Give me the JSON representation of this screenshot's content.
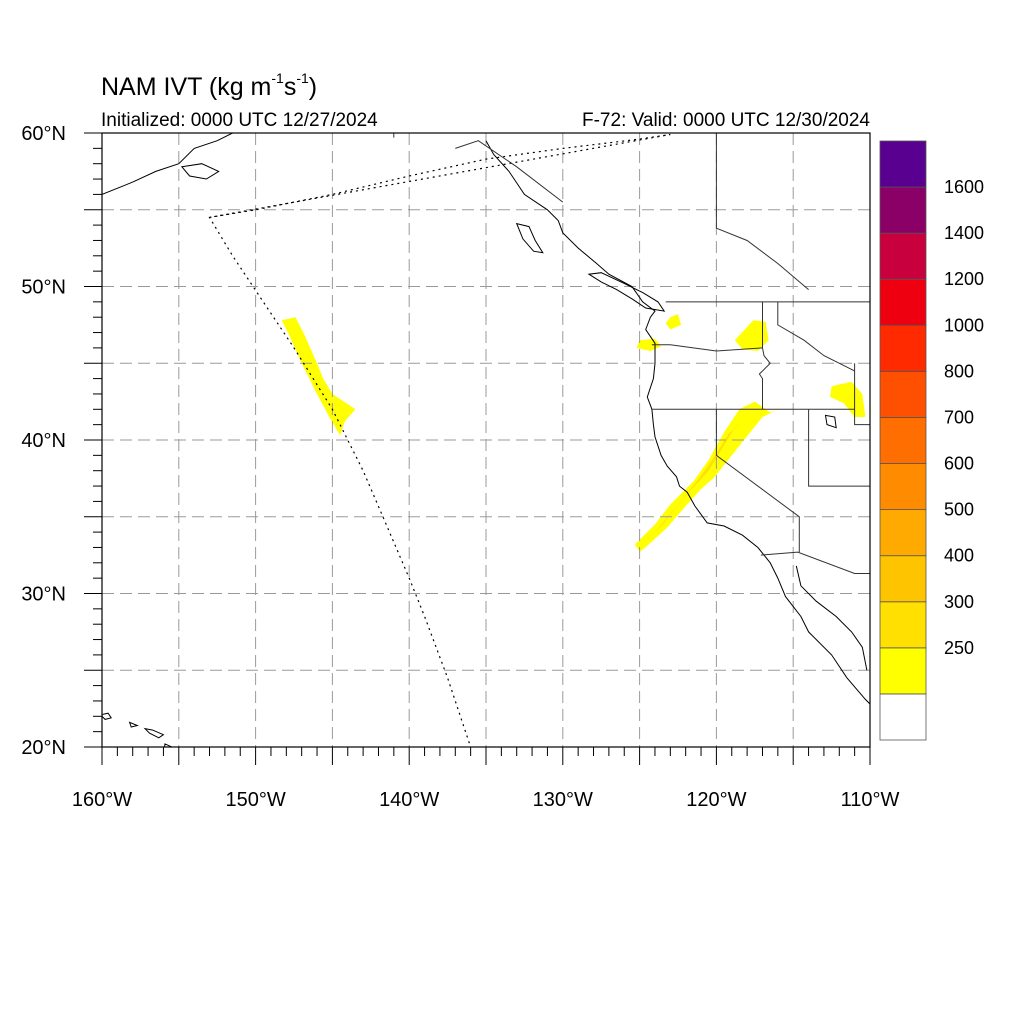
{
  "header": {
    "title_main": "NAM IVT (kg m",
    "title_exp1": "-1",
    "title_mid": "s",
    "title_exp2": "-1",
    "title_end": ")",
    "initialized": "Initialized: 0000 UTC 12/27/2024",
    "valid": "F-72: Valid: 0000 UTC 12/30/2024"
  },
  "map": {
    "lon_range": [
      -160,
      -110
    ],
    "lat_range": [
      20,
      60
    ],
    "lat_labels": [
      {
        "lat": 60,
        "text": "60°N"
      },
      {
        "lat": 50,
        "text": "50°N"
      },
      {
        "lat": 40,
        "text": "40°N"
      },
      {
        "lat": 30,
        "text": "30°N"
      },
      {
        "lat": 20,
        "text": "20°N"
      }
    ],
    "lon_labels": [
      {
        "lon": -160,
        "text": "160°W"
      },
      {
        "lon": -150,
        "text": "150°W"
      },
      {
        "lon": -140,
        "text": "140°W"
      },
      {
        "lon": -130,
        "text": "130°W"
      },
      {
        "lon": -120,
        "text": "120°W"
      },
      {
        "lon": -110,
        "text": "110°W"
      }
    ],
    "domain_boundary": [
      [
        -153.0,
        54.5
      ],
      [
        -150.0,
        55.0
      ],
      [
        -145.0,
        56.0
      ],
      [
        -140.0,
        57.2
      ],
      [
        -135.0,
        58.3
      ],
      [
        -130.0,
        59.0
      ],
      [
        -125.0,
        59.6
      ],
      [
        -123.0,
        59.9
      ],
      [
        -153.0,
        54.5
      ],
      [
        -151.5,
        52.0
      ],
      [
        -149.5,
        49.0
      ],
      [
        -147.5,
        46.0
      ],
      [
        -145.0,
        42.0
      ],
      [
        -143.0,
        38.0
      ],
      [
        -141.5,
        34.5
      ],
      [
        -140.0,
        31.0
      ],
      [
        -139.0,
        28.5
      ],
      [
        -137.5,
        24.5
      ],
      [
        -136.0,
        20.0
      ]
    ],
    "ivt_regions": [
      {
        "name": "offshore-plume",
        "level": 250,
        "color": "#ffff00",
        "points": [
          [
            -148.3,
            47.8
          ],
          [
            -147.4,
            48.0
          ],
          [
            -146.8,
            46.8
          ],
          [
            -146.0,
            45.0
          ],
          [
            -145.6,
            44.0
          ],
          [
            -145.0,
            43.0
          ],
          [
            -143.5,
            42.0
          ],
          [
            -144.2,
            41.2
          ],
          [
            -144.5,
            40.3
          ],
          [
            -145.2,
            41.5
          ],
          [
            -146.0,
            43.0
          ],
          [
            -147.0,
            45.0
          ],
          [
            -147.8,
            46.8
          ]
        ]
      },
      {
        "name": "california-plume",
        "level": 250,
        "color": "#ffff00",
        "points": [
          [
            -125.3,
            33.2
          ],
          [
            -124.0,
            34.5
          ],
          [
            -123.0,
            35.8
          ],
          [
            -121.5,
            37.3
          ],
          [
            -120.5,
            38.7
          ],
          [
            -119.5,
            40.5
          ],
          [
            -118.5,
            42.0
          ],
          [
            -117.5,
            42.5
          ],
          [
            -116.5,
            41.8
          ],
          [
            -116.0,
            42.0
          ],
          [
            -117.0,
            41.5
          ],
          [
            -117.8,
            40.5
          ],
          [
            -119.0,
            39.0
          ],
          [
            -120.2,
            37.5
          ],
          [
            -121.0,
            36.8
          ],
          [
            -122.0,
            35.7
          ],
          [
            -123.2,
            34.3
          ],
          [
            -124.5,
            33.1
          ],
          [
            -125.0,
            32.7
          ]
        ]
      },
      {
        "name": "california-core",
        "level": 300,
        "color": "#ffe000",
        "points": [
          [
            -124.0,
            34.0
          ],
          [
            -123.0,
            35.2
          ],
          [
            -121.8,
            36.6
          ],
          [
            -120.5,
            38.0
          ],
          [
            -119.6,
            39.5
          ],
          [
            -118.8,
            40.8
          ],
          [
            -118.2,
            41.3
          ],
          [
            -119.2,
            40.4
          ],
          [
            -120.2,
            38.8
          ],
          [
            -121.2,
            37.4
          ],
          [
            -122.4,
            35.9
          ],
          [
            -123.5,
            34.5
          ]
        ]
      },
      {
        "name": "northwest-patch",
        "level": 250,
        "color": "#ffff00",
        "points": [
          [
            -125.0,
            46.5
          ],
          [
            -124.0,
            46.6
          ],
          [
            -123.6,
            46.1
          ],
          [
            -124.3,
            45.8
          ],
          [
            -125.2,
            46.0
          ]
        ]
      },
      {
        "name": "puget-patch",
        "level": 250,
        "color": "#ffff00",
        "points": [
          [
            -123.0,
            48.0
          ],
          [
            -122.5,
            48.2
          ],
          [
            -122.3,
            47.5
          ],
          [
            -123.0,
            47.2
          ],
          [
            -123.3,
            47.6
          ]
        ]
      },
      {
        "name": "idaho-patch",
        "level": 250,
        "color": "#ffff00",
        "points": [
          [
            -118.8,
            46.5
          ],
          [
            -117.6,
            47.8
          ],
          [
            -116.8,
            47.7
          ],
          [
            -116.6,
            46.5
          ],
          [
            -117.3,
            45.8
          ],
          [
            -118.3,
            45.9
          ]
        ]
      },
      {
        "name": "utah-patch",
        "level": 250,
        "color": "#ffff00",
        "points": [
          [
            -112.5,
            43.5
          ],
          [
            -111.2,
            43.8
          ],
          [
            -110.5,
            43.0
          ],
          [
            -110.3,
            41.5
          ],
          [
            -111.0,
            41.5
          ],
          [
            -111.7,
            42.4
          ],
          [
            -112.6,
            42.8
          ]
        ]
      }
    ],
    "coastline": [
      [
        -135.0,
        59.5
      ],
      [
        -134.5,
        58.6
      ],
      [
        -133.5,
        57.5
      ],
      [
        -132.5,
        56.0
      ],
      [
        -131.0,
        55.0
      ],
      [
        -130.3,
        54.3
      ],
      [
        -130.0,
        53.5
      ],
      [
        -129.0,
        52.5
      ],
      [
        -127.8,
        51.5
      ],
      [
        -127.0,
        50.8
      ],
      [
        -125.5,
        50.0
      ],
      [
        -124.8,
        49.0
      ],
      [
        -124.0,
        48.4
      ],
      [
        -124.3,
        48.0
      ],
      [
        -124.6,
        47.2
      ],
      [
        -124.0,
        46.3
      ],
      [
        -124.0,
        45.0
      ],
      [
        -124.1,
        44.0
      ],
      [
        -124.5,
        42.8
      ],
      [
        -124.2,
        42.0
      ],
      [
        -124.1,
        41.0
      ],
      [
        -124.0,
        40.2
      ],
      [
        -123.6,
        39.0
      ],
      [
        -123.2,
        38.3
      ],
      [
        -122.6,
        37.6
      ],
      [
        -122.4,
        37.0
      ],
      [
        -121.9,
        36.6
      ],
      [
        -121.4,
        35.7
      ],
      [
        -120.6,
        34.6
      ],
      [
        -119.5,
        34.4
      ],
      [
        -118.3,
        33.8
      ],
      [
        -117.3,
        33.0
      ],
      [
        -116.5,
        32.0
      ],
      [
        -116.0,
        31.0
      ],
      [
        -115.5,
        29.8
      ],
      [
        -114.5,
        28.5
      ],
      [
        -114.0,
        27.5
      ],
      [
        -112.5,
        26.0
      ],
      [
        -111.5,
        24.5
      ],
      [
        -110.3,
        23.1
      ],
      [
        -110.0,
        22.8
      ]
    ],
    "gulf_coast": [
      [
        -114.8,
        31.8
      ],
      [
        -114.5,
        30.5
      ],
      [
        -113.5,
        29.5
      ],
      [
        -112.2,
        28.5
      ],
      [
        -111.2,
        27.5
      ],
      [
        -110.5,
        26.5
      ],
      [
        -110.2,
        25.0
      ]
    ],
    "vancouver_island": [
      [
        -128.3,
        50.8
      ],
      [
        -127.5,
        50.3
      ],
      [
        -126.5,
        49.8
      ],
      [
        -125.5,
        49.2
      ],
      [
        -124.6,
        48.6
      ],
      [
        -123.4,
        48.4
      ],
      [
        -123.8,
        49.0
      ],
      [
        -124.8,
        49.6
      ],
      [
        -126.0,
        50.2
      ],
      [
        -127.5,
        50.9
      ]
    ],
    "haida_gwaii": [
      [
        -133.0,
        54.1
      ],
      [
        -132.2,
        53.9
      ],
      [
        -131.8,
        53.0
      ],
      [
        -131.3,
        52.2
      ],
      [
        -131.9,
        52.3
      ],
      [
        -132.6,
        53.1
      ]
    ],
    "alaska_west": [
      [
        -160.0,
        56.0
      ],
      [
        -158.0,
        56.8
      ],
      [
        -156.5,
        57.5
      ],
      [
        -155.0,
        58.0
      ],
      [
        -154.0,
        59.0
      ],
      [
        -152.5,
        59.5
      ],
      [
        -151.5,
        60.0
      ]
    ],
    "kodiak": [
      [
        -154.8,
        57.8
      ],
      [
        -153.5,
        58.0
      ],
      [
        -152.4,
        57.5
      ],
      [
        -153.2,
        57.0
      ],
      [
        -154.3,
        57.2
      ]
    ],
    "hawaii": [
      [
        -160.1,
        22.1
      ],
      [
        -159.6,
        22.2
      ],
      [
        -159.4,
        21.9
      ],
      [
        -159.8,
        21.8
      ]
    ],
    "hawaii2": [
      [
        -158.2,
        21.6
      ],
      [
        -157.7,
        21.4
      ],
      [
        -158.1,
        21.3
      ]
    ],
    "hawaii3": [
      [
        -157.2,
        21.2
      ],
      [
        -156.7,
        21.1
      ],
      [
        -156.0,
        20.8
      ],
      [
        -156.3,
        20.6
      ],
      [
        -156.9,
        20.9
      ]
    ],
    "hawaii4": [
      [
        -155.9,
        20.2
      ],
      [
        -155.0,
        19.8
      ],
      [
        -155.5,
        19.2
      ],
      [
        -156.0,
        19.5
      ]
    ],
    "borders": [
      [
        [
          -123.3,
          49.0
        ],
        [
          -110.0,
          49.0
        ]
      ],
      [
        [
          -141.0,
          60.0
        ],
        [
          -141.0,
          59.7
        ]
      ],
      [
        [
          -124.2,
          46.2
        ],
        [
          -123.0,
          46.2
        ],
        [
          -120.0,
          45.8
        ],
        [
          -117.0,
          46.0
        ],
        [
          -116.9,
          45.5
        ],
        [
          -116.5,
          45.0
        ],
        [
          -117.2,
          44.3
        ],
        [
          -117.0,
          44.0
        ],
        [
          -117.0,
          42.0
        ]
      ],
      [
        [
          -124.2,
          42.0
        ],
        [
          -111.0,
          42.0
        ]
      ],
      [
        [
          -120.0,
          42.0
        ],
        [
          -120.0,
          39.0
        ],
        [
          -114.6,
          35.0
        ],
        [
          -114.6,
          32.7
        ]
      ],
      [
        [
          -117.0,
          49.0
        ],
        [
          -117.0,
          46.0
        ]
      ],
      [
        [
          -116.0,
          49.0
        ],
        [
          -116.0,
          47.5
        ],
        [
          -114.3,
          46.5
        ],
        [
          -113.0,
          45.5
        ],
        [
          -111.0,
          44.5
        ]
      ],
      [
        [
          -114.0,
          42.0
        ],
        [
          -114.0,
          37.0
        ],
        [
          -110.0,
          37.0
        ]
      ],
      [
        [
          -111.0,
          45.0
        ],
        [
          -111.0,
          41.0
        ],
        [
          -110.0,
          41.0
        ]
      ],
      [
        [
          -117.1,
          32.5
        ],
        [
          -114.7,
          32.7
        ],
        [
          -111.0,
          31.3
        ],
        [
          -108.2,
          31.3
        ]
      ],
      [
        [
          -120.0,
          60.0
        ],
        [
          -120.0,
          53.8
        ],
        [
          -118.0,
          53.0
        ],
        [
          -116.0,
          51.5
        ],
        [
          -114.0,
          49.8
        ]
      ],
      [
        [
          -130.0,
          55.5
        ],
        [
          -133.0,
          57.8
        ],
        [
          -135.5,
          59.5
        ],
        [
          -137.0,
          59.0
        ]
      ]
    ],
    "lake": [
      [
        -112.9,
        41.6
      ],
      [
        -112.3,
        41.5
      ],
      [
        -112.2,
        40.8
      ],
      [
        -112.8,
        41.0
      ]
    ]
  },
  "colorbar": {
    "levels": [
      {
        "label": "",
        "color": "#ffffff"
      },
      {
        "label": "250",
        "color": "#ffff00"
      },
      {
        "label": "300",
        "color": "#ffe000"
      },
      {
        "label": "400",
        "color": "#ffc400"
      },
      {
        "label": "500",
        "color": "#ffaa00"
      },
      {
        "label": "600",
        "color": "#ff8c00"
      },
      {
        "label": "700",
        "color": "#ff6e00"
      },
      {
        "label": "800",
        "color": "#ff4f00"
      },
      {
        "label": "1000",
        "color": "#ff2a00"
      },
      {
        "label": "1200",
        "color": "#ee0010"
      },
      {
        "label": "1400",
        "color": "#c8003e"
      },
      {
        "label": "1600",
        "color": "#8a0066"
      },
      {
        "label": "",
        "color": "#5a0090"
      }
    ]
  }
}
